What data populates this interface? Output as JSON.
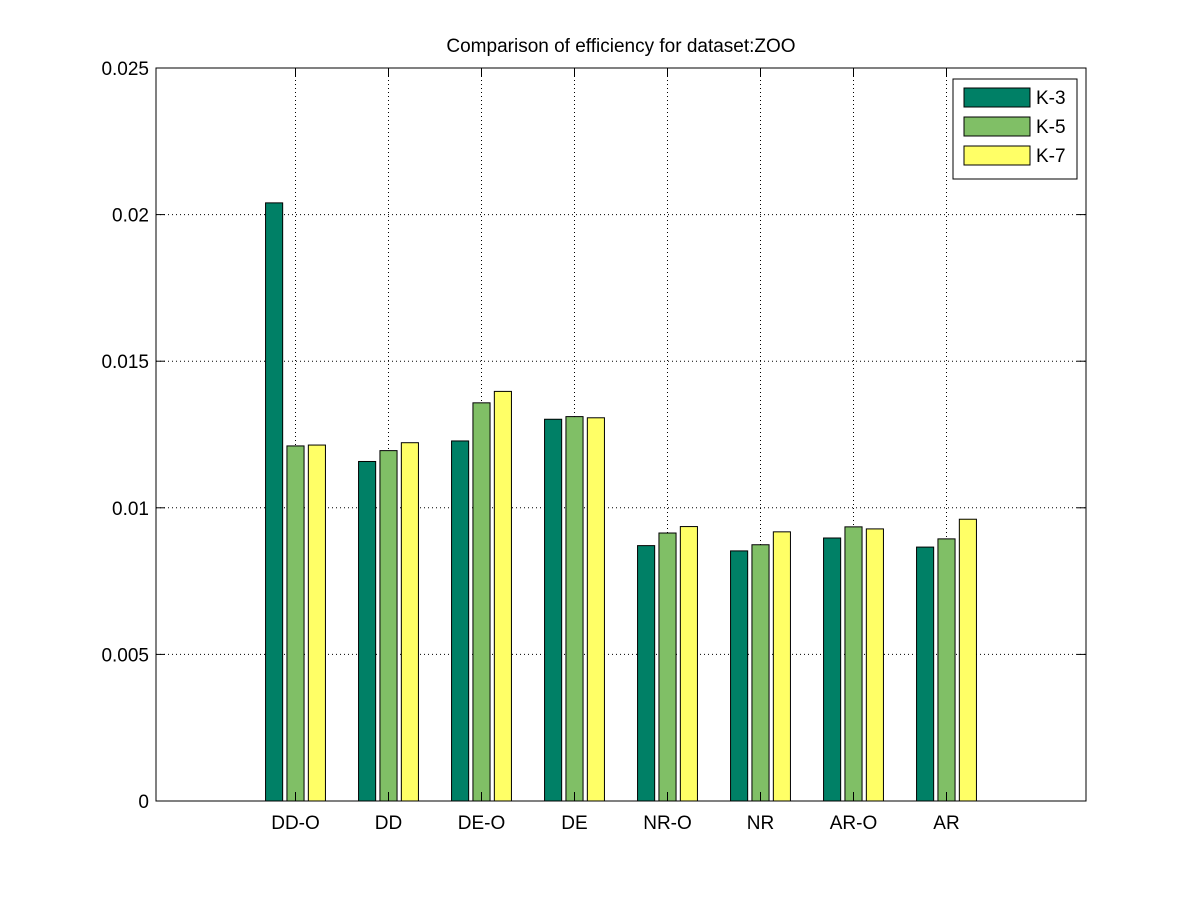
{
  "chart_data": {
    "type": "bar",
    "title": "Comparison of efficiency for dataset:ZOO",
    "xlabel": "",
    "ylabel": "",
    "categories": [
      "DD-O",
      "DD",
      "DE-O",
      "DE",
      "NR-O",
      "NR",
      "AR-O",
      "AR"
    ],
    "series": [
      {
        "name": "K-3",
        "color": "#008066",
        "values": [
          0.0204,
          0.01158,
          0.01228,
          0.01302,
          0.00871,
          0.00853,
          0.00897,
          0.00866
        ]
      },
      {
        "name": "K-5",
        "color": "#80BF66",
        "values": [
          0.01211,
          0.01195,
          0.01358,
          0.01311,
          0.00914,
          0.00874,
          0.00935,
          0.00894
        ]
      },
      {
        "name": "K-7",
        "color": "#FFFF66",
        "values": [
          0.01214,
          0.01222,
          0.01397,
          0.01307,
          0.00936,
          0.00918,
          0.00928,
          0.00961
        ]
      }
    ],
    "ylim": [
      0,
      0.025
    ],
    "yticks": [
      0,
      0.005,
      0.01,
      0.015,
      0.02,
      0.025
    ],
    "ytick_labels": [
      "0",
      "0.005",
      "0.01",
      "0.015",
      "0.02",
      "0.025"
    ],
    "grid": true,
    "legend_position": "top-right"
  }
}
